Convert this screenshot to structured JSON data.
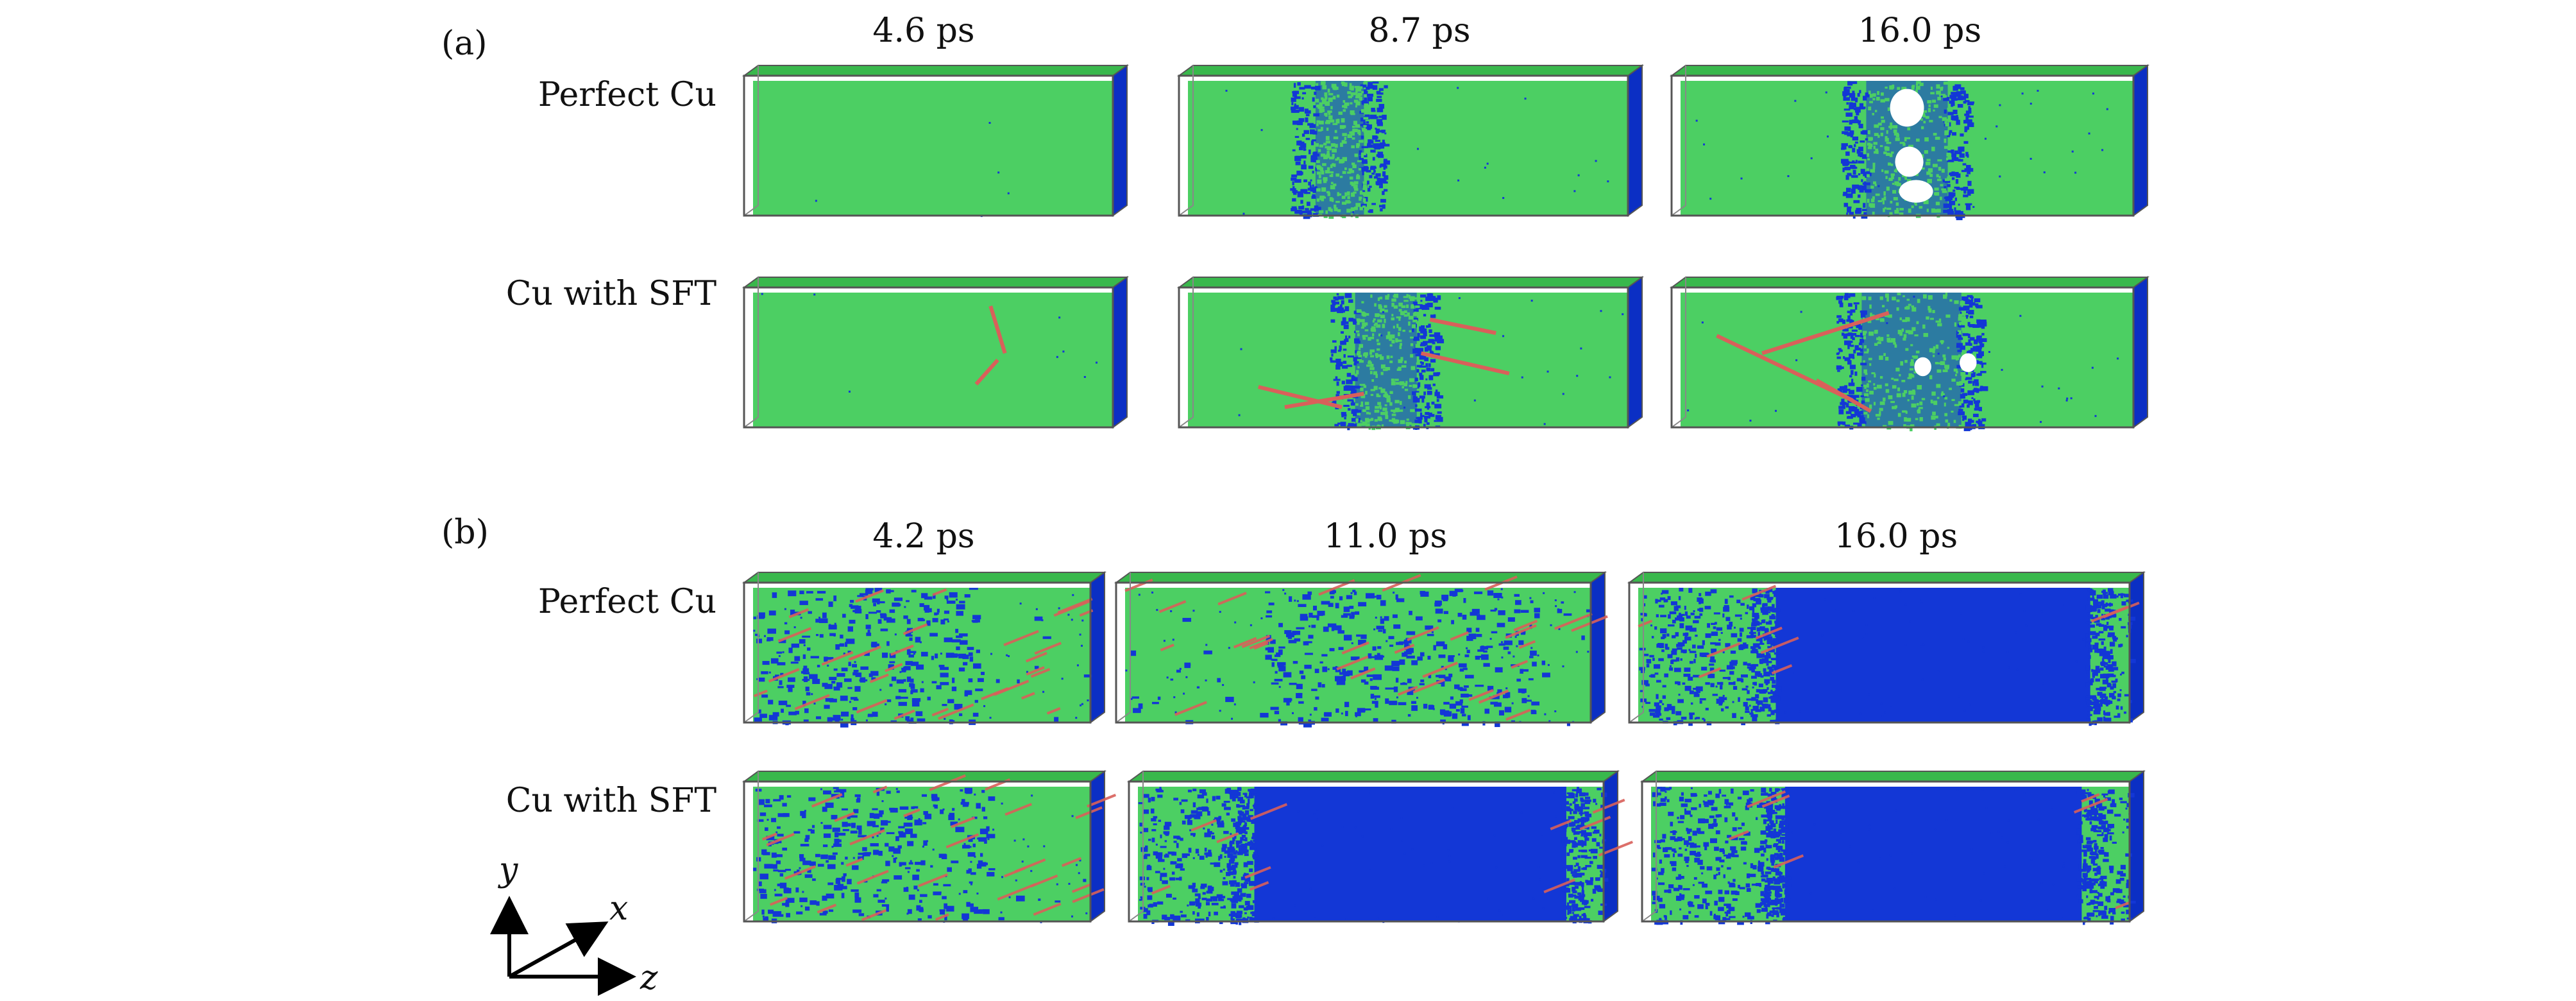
{
  "panels": [
    {
      "label": "(a)",
      "times": [
        "4.6 ps",
        "8.7 ps",
        "16.0 ps"
      ],
      "rows": [
        "Perfect Cu",
        "Cu with SFT"
      ]
    },
    {
      "label": "(b)",
      "times": [
        "4.2 ps",
        "11.0 ps",
        "16.0 ps"
      ],
      "rows": [
        "Perfect Cu",
        "Cu with SFT"
      ]
    }
  ],
  "axes": {
    "y": "y",
    "x": "x",
    "z": "z"
  },
  "colors": {
    "fcc": "#4ccf63",
    "other": "#1337d6",
    "hcp": "#d9605a",
    "void": "#ffffff",
    "box_edge": "#555555",
    "box_top": "#39b84c",
    "box_side": "#0b2fc4"
  }
}
